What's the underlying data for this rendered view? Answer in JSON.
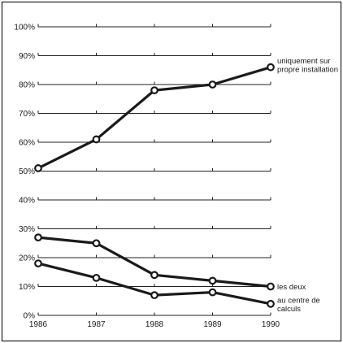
{
  "chart_data": {
    "type": "line",
    "categories": [
      "1986",
      "1987",
      "1988",
      "1989",
      "1990"
    ],
    "x": [
      1986,
      1987,
      1988,
      1989,
      1990
    ],
    "ylim": [
      0,
      100
    ],
    "yticks": [
      "0%",
      "10%",
      "20%",
      "30%",
      "40%",
      "50%",
      "60%",
      "70%",
      "80%",
      "90%",
      "100%"
    ],
    "grid": "horizontal",
    "series": [
      {
        "name": "uniquement sur propre installation",
        "name_lines": [
          "uniquement sur",
          "propre installation"
        ],
        "values": [
          51,
          61,
          78,
          80,
          86
        ]
      },
      {
        "name": "les deux",
        "name_lines": [
          "les deux"
        ],
        "values": [
          27,
          25,
          14,
          12,
          10
        ]
      },
      {
        "name": "au centre de calculs",
        "name_lines": [
          "au centre de",
          "calculs"
        ],
        "values": [
          18,
          13,
          7,
          8,
          4
        ]
      }
    ]
  }
}
